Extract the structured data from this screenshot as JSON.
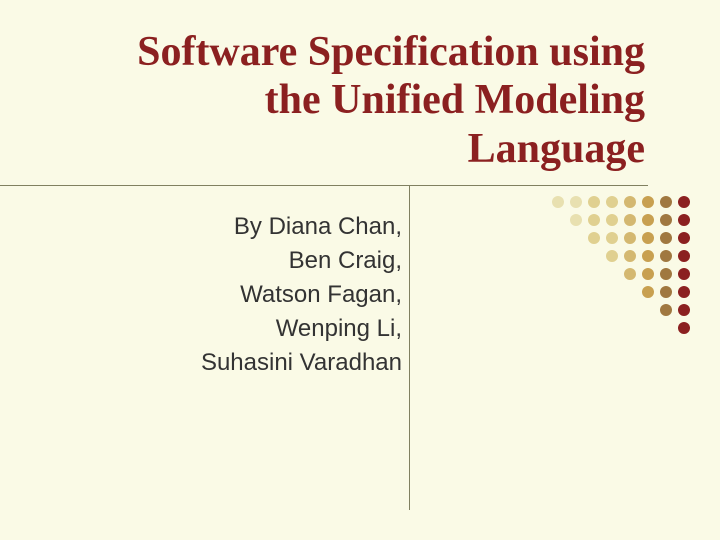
{
  "slide": {
    "title": "Software Specification using the Unified Modeling Language",
    "authors": {
      "line1": "By Diana Chan,",
      "line2": "Ben Craig,",
      "line3": "Watson Fagan,",
      "line4": "Wenping Li,",
      "line5": "Suhasini Varadhan"
    }
  },
  "colors": {
    "background": "#fafae6",
    "title": "#8b2020",
    "body_text": "#333333",
    "rule": "#808060"
  },
  "dot_pattern": {
    "rows": [
      {
        "count": 8,
        "colors": [
          "#e8e0b0",
          "#e8e0b0",
          "#e0d090",
          "#e0d090",
          "#d4b870",
          "#c8a050",
          "#a07840",
          "#8b2020"
        ]
      },
      {
        "count": 7,
        "colors": [
          "#e8e0b0",
          "#e0d090",
          "#e0d090",
          "#d4b870",
          "#c8a050",
          "#a07840",
          "#8b2020"
        ]
      },
      {
        "count": 6,
        "colors": [
          "#e0d090",
          "#e0d090",
          "#d4b870",
          "#c8a050",
          "#a07840",
          "#8b2020"
        ]
      },
      {
        "count": 5,
        "colors": [
          "#e0d090",
          "#d4b870",
          "#c8a050",
          "#a07840",
          "#8b2020"
        ]
      },
      {
        "count": 4,
        "colors": [
          "#d4b870",
          "#c8a050",
          "#a07840",
          "#8b2020"
        ]
      },
      {
        "count": 3,
        "colors": [
          "#c8a050",
          "#a07840",
          "#8b2020"
        ]
      },
      {
        "count": 2,
        "colors": [
          "#a07840",
          "#8b2020"
        ]
      },
      {
        "count": 1,
        "colors": [
          "#8b2020"
        ]
      }
    ]
  }
}
